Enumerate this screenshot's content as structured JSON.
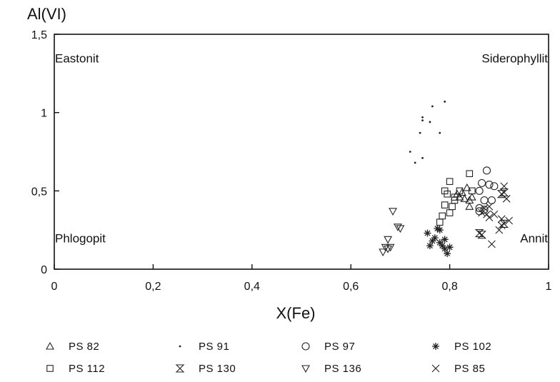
{
  "chart_data": {
    "type": "scatter",
    "title": "",
    "xlabel": "X(Fe)",
    "ylabel": "Al(VI)",
    "xlim": [
      0,
      1
    ],
    "ylim": [
      0,
      1.5
    ],
    "grid": false,
    "legend_position": "bottom",
    "x_ticks": [
      {
        "value": 0,
        "label": "0"
      },
      {
        "value": 0.2,
        "label": "0,2"
      },
      {
        "value": 0.4,
        "label": "0,4"
      },
      {
        "value": 0.6,
        "label": "0,6"
      },
      {
        "value": 0.8,
        "label": "0,8"
      },
      {
        "value": 1,
        "label": "1"
      }
    ],
    "y_ticks": [
      {
        "value": 0,
        "label": "0"
      },
      {
        "value": 0.5,
        "label": "0,5"
      },
      {
        "value": 1,
        "label": "1"
      },
      {
        "value": 1.5,
        "label": "1,5"
      }
    ],
    "annotations": [
      {
        "text": "Eastonit",
        "x": 0.0,
        "y": 1.32,
        "anchor": "start"
      },
      {
        "text": "Siderophyllit",
        "x": 1.0,
        "y": 1.32,
        "anchor": "end"
      },
      {
        "text": "Phlogopit",
        "x": 0.0,
        "y": 0.17,
        "anchor": "start"
      },
      {
        "text": "Annit",
        "x": 1.0,
        "y": 0.17,
        "anchor": "end"
      }
    ],
    "series": [
      {
        "name": "PS 82",
        "marker": "triangle-up",
        "points": [
          [
            0.815,
            0.48
          ],
          [
            0.825,
            0.49
          ],
          [
            0.83,
            0.45
          ],
          [
            0.835,
            0.52
          ],
          [
            0.84,
            0.4
          ],
          [
            0.84,
            0.44
          ],
          [
            0.845,
            0.46
          ],
          [
            0.82,
            0.46
          ]
        ]
      },
      {
        "name": "PS 91",
        "marker": "dot",
        "points": [
          [
            0.72,
            0.75
          ],
          [
            0.73,
            0.68
          ],
          [
            0.745,
            0.71
          ],
          [
            0.74,
            0.87
          ],
          [
            0.745,
            0.95
          ],
          [
            0.745,
            0.97
          ],
          [
            0.76,
            0.94
          ],
          [
            0.765,
            1.04
          ],
          [
            0.78,
            0.87
          ],
          [
            0.79,
            1.07
          ]
        ]
      },
      {
        "name": "PS 97",
        "marker": "circle",
        "points": [
          [
            0.86,
            0.37
          ],
          [
            0.86,
            0.5
          ],
          [
            0.865,
            0.55
          ],
          [
            0.87,
            0.44
          ],
          [
            0.875,
            0.63
          ],
          [
            0.88,
            0.54
          ],
          [
            0.885,
            0.44
          ],
          [
            0.89,
            0.53
          ],
          [
            0.86,
            0.39
          ],
          [
            0.87,
            0.38
          ]
        ]
      },
      {
        "name": "PS 102",
        "marker": "asterisk",
        "points": [
          [
            0.755,
            0.23
          ],
          [
            0.76,
            0.15
          ],
          [
            0.765,
            0.18
          ],
          [
            0.77,
            0.2
          ],
          [
            0.775,
            0.26
          ],
          [
            0.78,
            0.17
          ],
          [
            0.785,
            0.15
          ],
          [
            0.79,
            0.13
          ],
          [
            0.795,
            0.1
          ],
          [
            0.8,
            0.14
          ],
          [
            0.79,
            0.19
          ],
          [
            0.78,
            0.25
          ]
        ]
      },
      {
        "name": "PS 112",
        "marker": "square",
        "points": [
          [
            0.78,
            0.3
          ],
          [
            0.785,
            0.34
          ],
          [
            0.79,
            0.41
          ],
          [
            0.79,
            0.5
          ],
          [
            0.795,
            0.48
          ],
          [
            0.8,
            0.36
          ],
          [
            0.805,
            0.4
          ],
          [
            0.8,
            0.56
          ],
          [
            0.81,
            0.46
          ],
          [
            0.81,
            0.44
          ],
          [
            0.82,
            0.5
          ],
          [
            0.84,
            0.61
          ],
          [
            0.845,
            0.5
          ]
        ]
      },
      {
        "name": "PS 130",
        "marker": "hourglass",
        "points": [
          [
            0.86,
            0.23
          ],
          [
            0.865,
            0.22
          ],
          [
            0.905,
            0.48
          ],
          [
            0.91,
            0.49
          ],
          [
            0.91,
            0.29
          ]
        ]
      },
      {
        "name": "PS 136",
        "marker": "triangle-down",
        "points": [
          [
            0.665,
            0.11
          ],
          [
            0.67,
            0.14
          ],
          [
            0.675,
            0.19
          ],
          [
            0.675,
            0.13
          ],
          [
            0.68,
            0.14
          ],
          [
            0.685,
            0.37
          ],
          [
            0.695,
            0.27
          ],
          [
            0.7,
            0.26
          ]
        ]
      },
      {
        "name": "PS 85",
        "marker": "cross",
        "points": [
          [
            0.865,
            0.36
          ],
          [
            0.87,
            0.39
          ],
          [
            0.875,
            0.35
          ],
          [
            0.88,
            0.33
          ],
          [
            0.885,
            0.16
          ],
          [
            0.89,
            0.35
          ],
          [
            0.9,
            0.25
          ],
          [
            0.905,
            0.28
          ],
          [
            0.905,
            0.32
          ],
          [
            0.91,
            0.53
          ],
          [
            0.915,
            0.45
          ],
          [
            0.92,
            0.31
          ],
          [
            0.88,
            0.4
          ]
        ]
      }
    ]
  }
}
